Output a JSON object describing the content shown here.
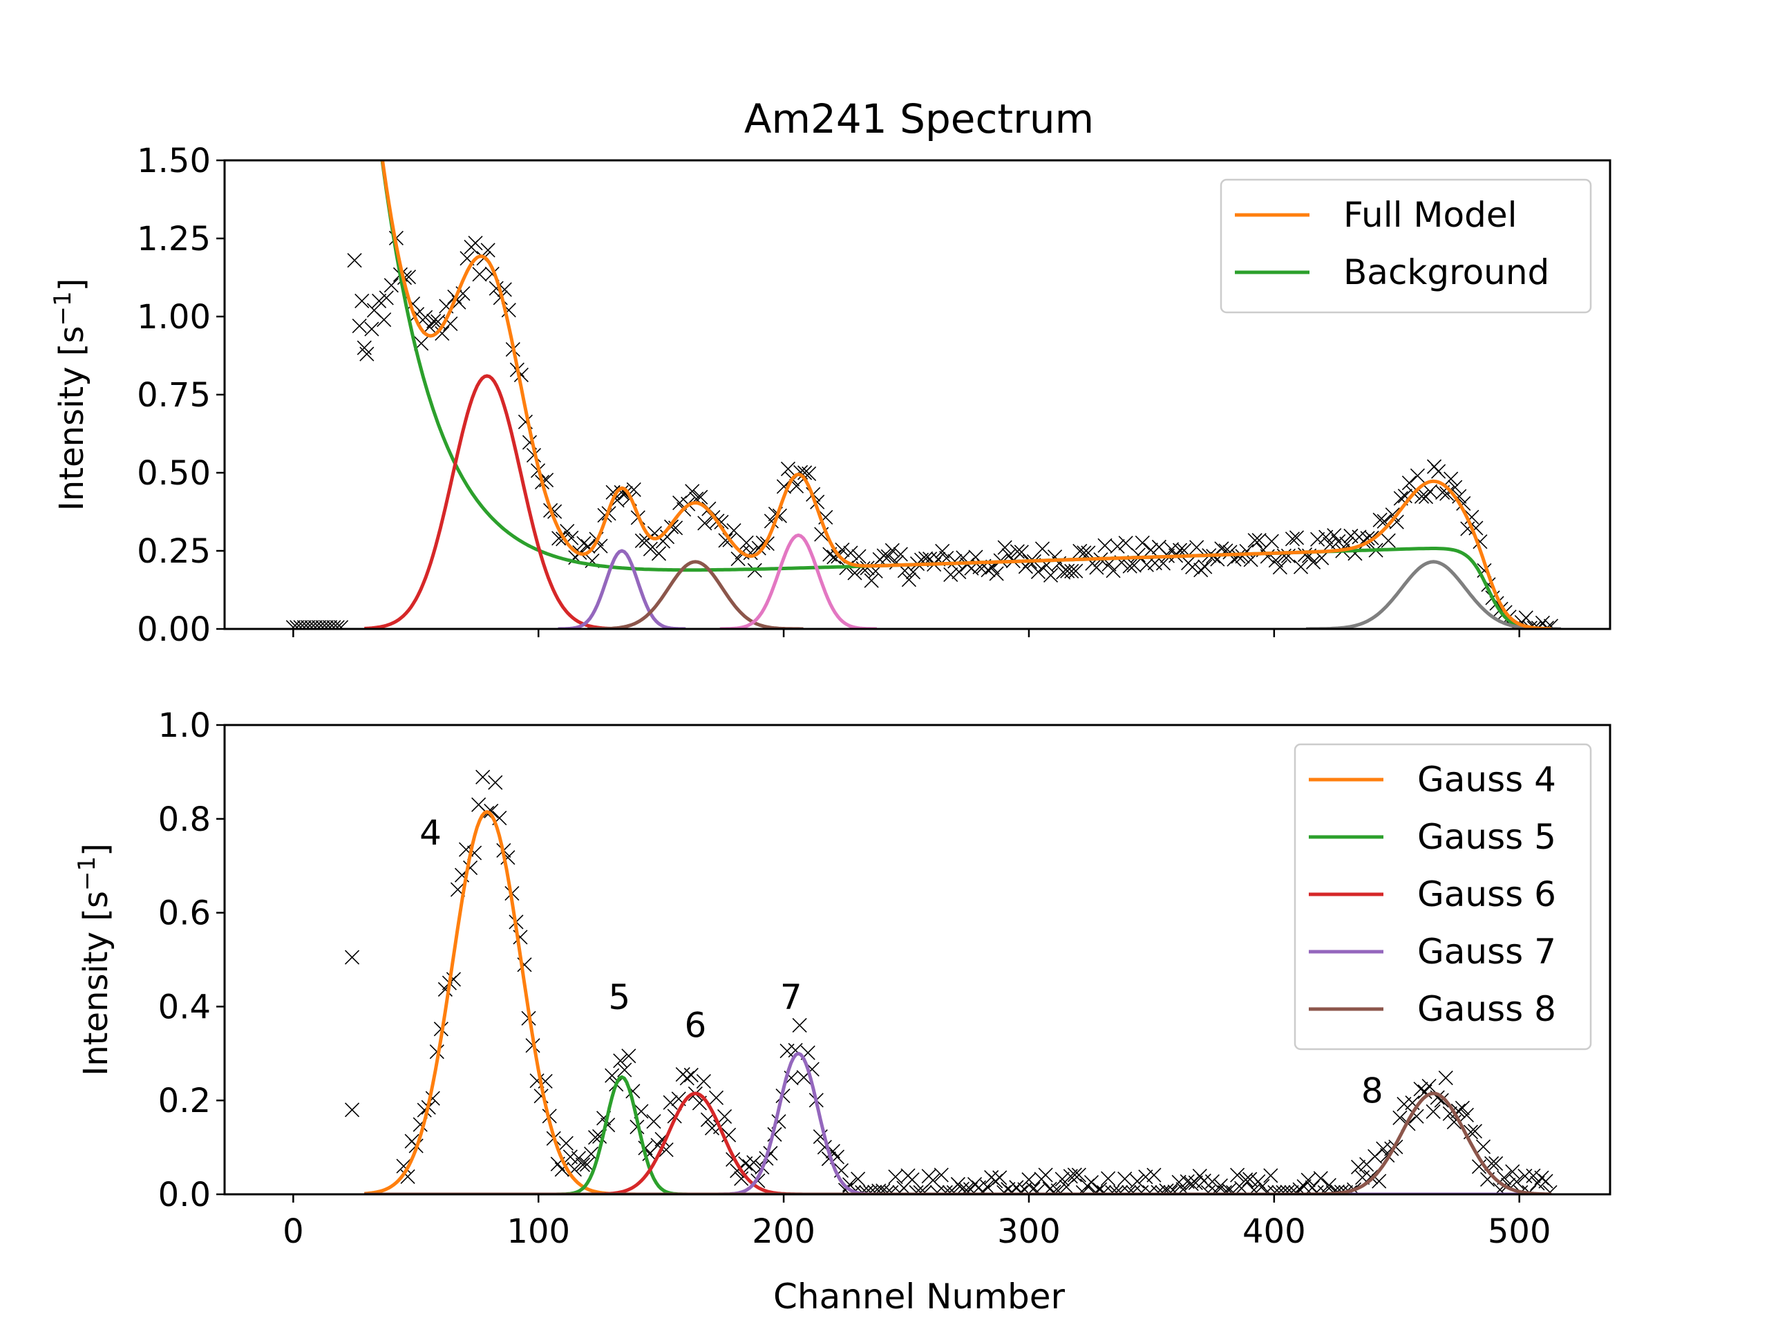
{
  "title": "Am241 Spectrum",
  "xlabel": "Channel Number",
  "chart_data": [
    {
      "type": "line",
      "title": "Am241 Spectrum",
      "xlabel": "",
      "ylabel_base": "Intensity [s",
      "ylabel_sup": "−1",
      "ylabel_end": "]",
      "xlim": [
        -28,
        537
      ],
      "ylim": [
        0,
        1.5
      ],
      "xticks": [
        0,
        100,
        200,
        300,
        400,
        500
      ],
      "xtick_labels_visible": false,
      "yticks": [
        0.0,
        0.25,
        0.5,
        0.75,
        1.0,
        1.25,
        1.5
      ],
      "ytick_labels": [
        "0.00",
        "0.25",
        "0.50",
        "0.75",
        "1.00",
        "1.25",
        "1.50"
      ],
      "legend_placement": "top-right",
      "legend": [
        {
          "label": "Full Model",
          "color": "#ff7f0e"
        },
        {
          "label": "Background",
          "color": "#2ca02c"
        }
      ],
      "model": {
        "background": {
          "exp_amp": 2.2,
          "exp_decay": 23,
          "exp_x0": 25,
          "offset": 0.19,
          "slope": 0.00025,
          "slope_x0": 190,
          "edge": 487,
          "edge_width": 4
        },
        "peaks": [
          {
            "name": "Gauss 4",
            "center": 79,
            "amplitude": 0.81,
            "sigma": 14,
            "color": "#d62728"
          },
          {
            "name": "Gauss 5",
            "center": 134,
            "amplitude": 0.25,
            "sigma": 6.5,
            "color": "#9467bd"
          },
          {
            "name": "Gauss 6",
            "center": 164,
            "amplitude": 0.215,
            "sigma": 11,
            "color": "#8c564b"
          },
          {
            "name": "Gauss 7",
            "center": 206,
            "amplitude": 0.3,
            "sigma": 8,
            "color": "#e377c2"
          },
          {
            "name": "Gauss 8",
            "center": 465,
            "amplitude": 0.215,
            "sigma": 13,
            "color": "#7f7f7f"
          }
        ],
        "x_range": [
          29,
          513
        ]
      },
      "scatter": {
        "marker": "x",
        "color": "#000000",
        "x_range": [
          24,
          513
        ],
        "low_points_x_range": [
          0,
          20
        ],
        "low_points_y": 0.005,
        "early_points": [
          [
            25,
            1.18
          ],
          [
            27,
            0.97
          ],
          [
            28,
            1.05
          ],
          [
            29,
            0.9
          ],
          [
            30,
            0.88
          ],
          [
            32,
            0.96
          ],
          [
            33,
            1.02
          ],
          [
            35,
            1.05
          ],
          [
            37,
            0.99
          ],
          [
            38,
            1.06
          ],
          [
            40,
            1.1
          ]
        ]
      }
    },
    {
      "type": "line",
      "title": "",
      "xlabel": "Channel Number",
      "ylabel_base": "Intensity [s",
      "ylabel_sup": "−1",
      "ylabel_end": "]",
      "xlim": [
        -28,
        537
      ],
      "ylim": [
        0,
        1.0
      ],
      "xticks": [
        0,
        100,
        200,
        300,
        400,
        500
      ],
      "xtick_labels": [
        "0",
        "100",
        "200",
        "300",
        "400",
        "500"
      ],
      "yticks": [
        0.0,
        0.2,
        0.4,
        0.6,
        0.8,
        1.0
      ],
      "ytick_labels": [
        "0.0",
        "0.2",
        "0.4",
        "0.6",
        "0.8",
        "1.0"
      ],
      "legend_placement": "top-right",
      "legend": [
        {
          "label": "Gauss 4",
          "color": "#ff7f0e"
        },
        {
          "label": "Gauss 5",
          "color": "#2ca02c"
        },
        {
          "label": "Gauss 6",
          "color": "#d62728"
        },
        {
          "label": "Gauss 7",
          "color": "#9467bd"
        },
        {
          "label": "Gauss 8",
          "color": "#8c564b"
        }
      ],
      "series": [
        {
          "name": "Gauss 4",
          "center": 79,
          "amplitude": 0.815,
          "sigma": 14,
          "color": "#ff7f0e"
        },
        {
          "name": "Gauss 5",
          "center": 134,
          "amplitude": 0.25,
          "sigma": 6.5,
          "color": "#2ca02c"
        },
        {
          "name": "Gauss 6",
          "center": 164,
          "amplitude": 0.215,
          "sigma": 11,
          "color": "#d62728"
        },
        {
          "name": "Gauss 7",
          "center": 206,
          "amplitude": 0.3,
          "sigma": 8,
          "color": "#9467bd"
        },
        {
          "name": "Gauss 8",
          "center": 465,
          "amplitude": 0.215,
          "sigma": 13,
          "color": "#8c564b"
        }
      ],
      "x_range": [
        29,
        513
      ],
      "scatter": {
        "marker": "x",
        "color": "#000000",
        "x_range": [
          45,
          513
        ],
        "isolated_points": [
          [
            24,
            0.505
          ],
          [
            24,
            0.18
          ]
        ]
      },
      "annotations": [
        {
          "text": "4",
          "x": 56,
          "y": 0.77
        },
        {
          "text": "5",
          "x": 133,
          "y": 0.42
        },
        {
          "text": "6",
          "x": 164,
          "y": 0.36
        },
        {
          "text": "7",
          "x": 203,
          "y": 0.42
        },
        {
          "text": "8",
          "x": 440,
          "y": 0.22
        }
      ]
    }
  ]
}
